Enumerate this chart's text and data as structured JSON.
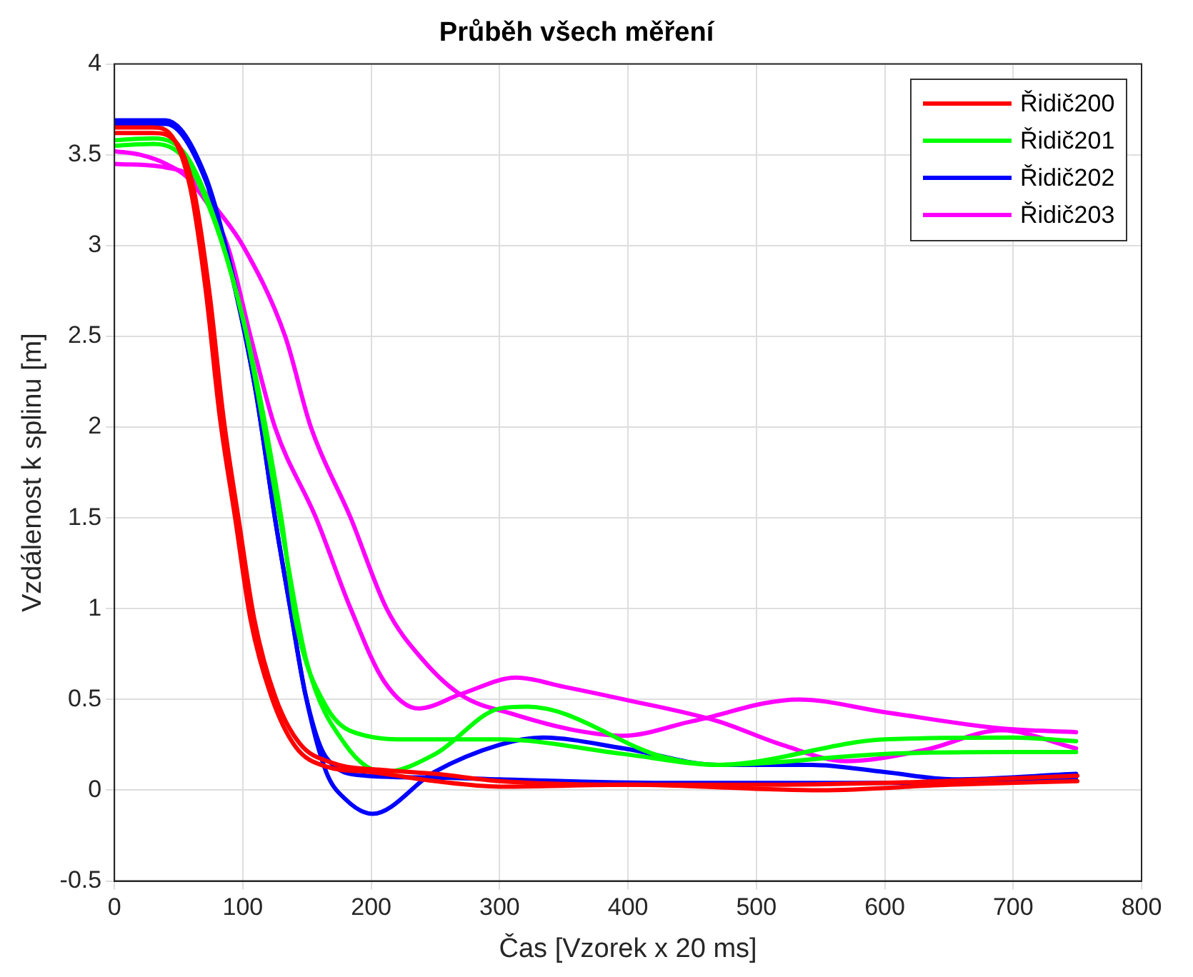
{
  "chart_data": {
    "type": "line",
    "title": "Průběh všech měření",
    "xlabel": "Čas [Vzorek x 20 ms]",
    "ylabel": "Vzdálenost k splinu [m]",
    "xlim": [
      0,
      800
    ],
    "xticks": [
      0,
      100,
      200,
      300,
      400,
      500,
      600,
      700,
      800
    ],
    "ylim": [
      -0.5,
      4
    ],
    "yticks": [
      -0.5,
      0,
      0.5,
      1,
      1.5,
      2,
      2.5,
      3,
      3.5,
      4
    ],
    "grid": true,
    "legend": "top right",
    "marker": "none",
    "line_style": "solid",
    "series": [
      {
        "name": "Řidič200",
        "color": "#ff0000",
        "x": [
          0,
          30,
          45,
          59,
          71,
          82,
          94,
          106,
          122,
          141,
          165,
          200,
          250,
          300,
          400,
          550,
          650,
          750
        ],
        "values": [
          3.65,
          3.65,
          3.6,
          3.32,
          2.76,
          2.06,
          1.5,
          0.94,
          0.52,
          0.24,
          0.13,
          0.1,
          0.05,
          0.02,
          0.03,
          0.0,
          0.03,
          0.05
        ]
      },
      {
        "color": "#ff0000",
        "x": [
          0,
          30,
          48,
          62,
          74,
          85,
          97,
          109,
          125,
          144,
          170,
          212,
          250,
          300,
          400,
          500,
          600,
          750
        ],
        "values": [
          3.62,
          3.62,
          3.57,
          3.3,
          2.74,
          2.05,
          1.48,
          0.94,
          0.52,
          0.26,
          0.15,
          0.11,
          0.09,
          0.05,
          0.03,
          0.03,
          0.04,
          0.08
        ]
      },
      {
        "name": "Řidič201",
        "color": "#00ff00",
        "x": [
          0,
          30,
          60,
          100,
          130,
          141,
          165,
          196,
          230,
          300,
          396,
          470,
          600,
          700,
          749
        ],
        "values": [
          3.58,
          3.59,
          3.45,
          2.6,
          1.5,
          0.94,
          0.46,
          0.3,
          0.28,
          0.28,
          0.2,
          0.14,
          0.2,
          0.21,
          0.21
        ]
      },
      {
        "color": "#00ff00",
        "x": [
          0,
          30,
          60,
          100,
          130,
          150,
          180,
          210,
          250,
          300,
          322,
          429,
          470,
          600,
          700,
          749
        ],
        "values": [
          3.55,
          3.56,
          3.42,
          2.6,
          1.45,
          0.7,
          0.25,
          0.1,
          0.2,
          0.45,
          0.46,
          0.18,
          0.14,
          0.28,
          0.29,
          0.27
        ]
      },
      {
        "name": "Řidič202",
        "color": "#0000ff",
        "x": [
          0,
          40,
          71,
          90,
          110,
          125,
          137,
          149,
          165,
          196,
          250,
          300,
          429,
          500,
          600,
          700,
          749
        ],
        "values": [
          3.69,
          3.69,
          3.38,
          2.9,
          2.2,
          1.5,
          1.0,
          0.52,
          0.18,
          0.08,
          0.07,
          0.06,
          0.04,
          0.04,
          0.04,
          0.05,
          0.06
        ]
      },
      {
        "color": "#0000ff",
        "x": [
          0,
          40,
          71,
          90,
          110,
          125,
          137,
          149,
          165,
          180,
          201,
          249,
          300,
          333,
          397,
          470,
          543,
          600,
          653,
          749
        ],
        "values": [
          3.67,
          3.67,
          3.36,
          2.88,
          2.2,
          1.5,
          1.0,
          0.52,
          0.1,
          -0.05,
          -0.13,
          0.1,
          0.25,
          0.29,
          0.23,
          0.14,
          0.14,
          0.1,
          0.06,
          0.09
        ]
      },
      {
        "name": "Řidič203",
        "color": "#ff00ff",
        "x": [
          0,
          20,
          40,
          60,
          88,
          106,
          125,
          157,
          184,
          210,
          237,
          270,
          313,
          350,
          397,
          470,
          520,
          570,
          630,
          691,
          749
        ],
        "values": [
          3.52,
          3.5,
          3.45,
          3.35,
          3.0,
          2.5,
          2.0,
          1.5,
          1.0,
          0.6,
          0.45,
          0.53,
          0.62,
          0.57,
          0.5,
          0.38,
          0.25,
          0.16,
          0.22,
          0.33,
          0.23
        ]
      },
      {
        "color": "#ff00ff",
        "x": [
          0,
          40,
          60,
          80,
          100,
          133,
          153,
          184,
          212,
          240,
          271,
          310,
          359,
          396,
          450,
          533,
          600,
          691,
          749
        ],
        "values": [
          3.45,
          3.43,
          3.38,
          3.2,
          3.0,
          2.5,
          2.0,
          1.5,
          1.0,
          0.72,
          0.52,
          0.42,
          0.33,
          0.3,
          0.38,
          0.5,
          0.43,
          0.34,
          0.32
        ]
      }
    ]
  }
}
